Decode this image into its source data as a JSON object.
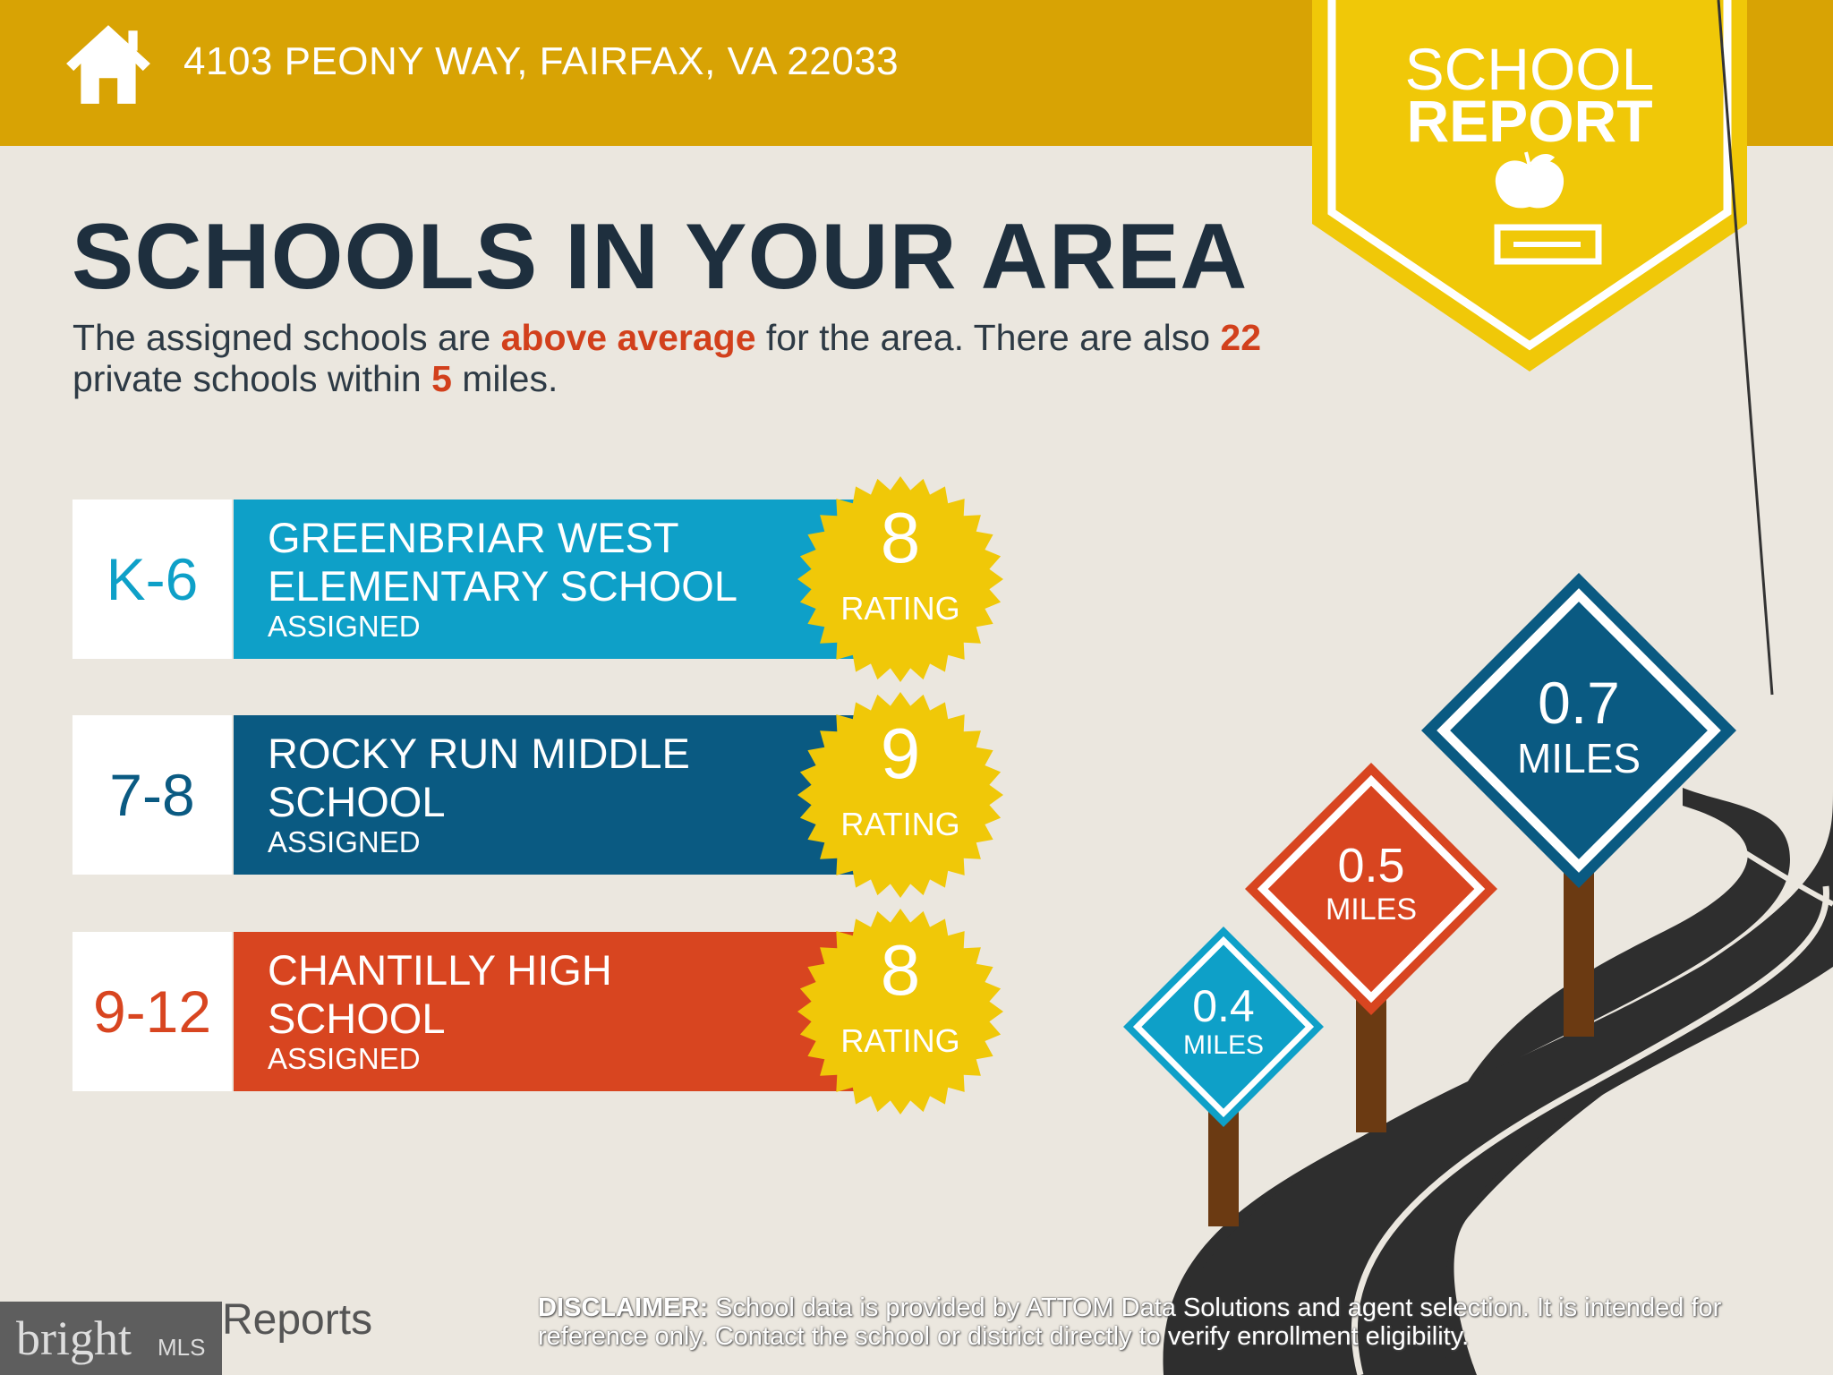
{
  "header": {
    "address": "4103 PEONY WAY, FAIRFAX, VA 22033",
    "icon": "house-icon"
  },
  "badge": {
    "line1": "SCHOOL",
    "line2": "REPORT",
    "icon": "apple-on-book-icon"
  },
  "title": "SCHOOLS IN YOUR AREA",
  "summary": {
    "p1": "The assigned schools are ",
    "highlight1": "above average",
    "p2": " for the area. There are also ",
    "highlight2": "22",
    "p3": " private schools within ",
    "highlight3": "5",
    "p4": " miles."
  },
  "schools": [
    {
      "grades": "K-6",
      "name1": "GREENBRIAR WEST",
      "name2": "ELEMENTARY SCHOOL",
      "status": "ASSIGNED",
      "rating": "8",
      "rating_label": "RATING",
      "color": "#0ea0c8"
    },
    {
      "grades": "7-8",
      "name1": "ROCKY RUN MIDDLE",
      "name2": "SCHOOL",
      "status": "ASSIGNED",
      "rating": "9",
      "rating_label": "RATING",
      "color": "#0a5a82"
    },
    {
      "grades": "9-12",
      "name1": "CHANTILLY HIGH",
      "name2": "SCHOOL",
      "status": "ASSIGNED",
      "rating": "8",
      "rating_label": "RATING",
      "color": "#d84520"
    }
  ],
  "signs": [
    {
      "value": "0.4",
      "unit": "MILES",
      "color": "#0ea0c8"
    },
    {
      "value": "0.5",
      "unit": "MILES",
      "color": "#d84520"
    },
    {
      "value": "0.7",
      "unit": "MILES",
      "color": "#0a5a82"
    }
  ],
  "footer": {
    "logo": "Reports",
    "bright": "bright",
    "mls": "MLS",
    "disclaimer_label": "DISCLAIMER:",
    "disclaimer": " School data is provided by ATTOM Data Solutions and agent selection. It is intended for reference only. Contact the school or district directly to verify enrollment eligibility."
  },
  "colors": {
    "header": "#d8a304",
    "badge": "#f0c808",
    "accent": "#d2401c",
    "star": "#f0c808"
  }
}
